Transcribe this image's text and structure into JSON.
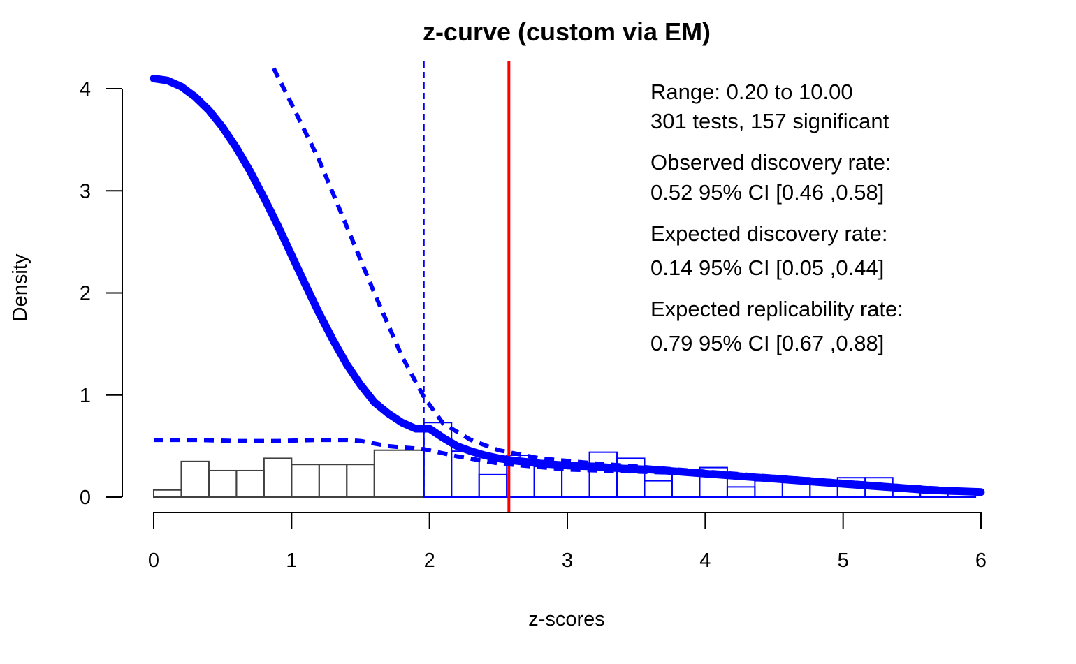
{
  "chart_data": {
    "type": "histogram",
    "title": "z-curve (custom via EM)",
    "xlabel": "z-scores",
    "ylabel": "Density",
    "xlim": [
      0,
      6
    ],
    "ylim": [
      0,
      4
    ],
    "x_ticks": [
      0,
      1,
      2,
      3,
      4,
      5,
      6
    ],
    "y_ticks": [
      0,
      1,
      2,
      3,
      4
    ],
    "colors": {
      "nonsignificant_bars": "#404040",
      "significant_bars": "#0000ff",
      "fitted_curve": "#0000ff",
      "significance_line": "#0000ff",
      "critical_line": "#ff0000"
    },
    "significance_threshold": 1.96,
    "critical_z_line": 2.576,
    "histogram": {
      "bin_width": 0.2,
      "nonsignificant": [
        {
          "x0": 0.0,
          "x1": 0.2,
          "density": 0.07
        },
        {
          "x0": 0.2,
          "x1": 0.4,
          "density": 0.35
        },
        {
          "x0": 0.4,
          "x1": 0.6,
          "density": 0.26
        },
        {
          "x0": 0.6,
          "x1": 0.8,
          "density": 0.26
        },
        {
          "x0": 0.8,
          "x1": 1.0,
          "density": 0.38
        },
        {
          "x0": 1.0,
          "x1": 1.2,
          "density": 0.32
        },
        {
          "x0": 1.2,
          "x1": 1.4,
          "density": 0.32
        },
        {
          "x0": 1.4,
          "x1": 1.6,
          "density": 0.32
        },
        {
          "x0": 1.6,
          "x1": 1.96,
          "density": 0.46
        }
      ],
      "significant": [
        {
          "x0": 1.96,
          "x1": 2.16,
          "density": 0.73
        },
        {
          "x0": 2.16,
          "x1": 2.36,
          "density": 0.45
        },
        {
          "x0": 2.36,
          "x1": 2.56,
          "density": 0.22
        },
        {
          "x0": 2.56,
          "x1": 2.76,
          "density": 0.41
        },
        {
          "x0": 2.76,
          "x1": 2.96,
          "density": 0.3
        },
        {
          "x0": 2.96,
          "x1": 3.16,
          "density": 0.32
        },
        {
          "x0": 3.16,
          "x1": 3.36,
          "density": 0.44
        },
        {
          "x0": 3.36,
          "x1": 3.56,
          "density": 0.38
        },
        {
          "x0": 3.56,
          "x1": 3.76,
          "density": 0.16
        },
        {
          "x0": 3.76,
          "x1": 3.96,
          "density": 0.26
        },
        {
          "x0": 3.96,
          "x1": 4.16,
          "density": 0.29
        },
        {
          "x0": 4.16,
          "x1": 4.36,
          "density": 0.1
        },
        {
          "x0": 4.36,
          "x1": 4.56,
          "density": 0.16
        },
        {
          "x0": 4.56,
          "x1": 4.76,
          "density": 0.19
        },
        {
          "x0": 4.76,
          "x1": 4.96,
          "density": 0.13
        },
        {
          "x0": 4.96,
          "x1": 5.16,
          "density": 0.19
        },
        {
          "x0": 5.16,
          "x1": 5.36,
          "density": 0.19
        },
        {
          "x0": 5.36,
          "x1": 5.56,
          "density": 0.06
        },
        {
          "x0": 5.56,
          "x1": 5.76,
          "density": 0.06
        },
        {
          "x0": 5.76,
          "x1": 5.96,
          "density": 0.03
        }
      ]
    },
    "fitted_curve": {
      "x": [
        0.0,
        0.1,
        0.2,
        0.3,
        0.4,
        0.5,
        0.6,
        0.7,
        0.8,
        0.9,
        1.0,
        1.1,
        1.2,
        1.3,
        1.4,
        1.5,
        1.6,
        1.7,
        1.8,
        1.9,
        2.0,
        2.1,
        2.2,
        2.3,
        2.4,
        2.5,
        2.6,
        2.8,
        3.0,
        3.2,
        3.4,
        3.6,
        3.8,
        4.0,
        4.2,
        4.4,
        4.6,
        4.8,
        5.0,
        5.2,
        5.4,
        5.6,
        5.8,
        6.0
      ],
      "y": [
        4.1,
        4.08,
        4.02,
        3.92,
        3.79,
        3.62,
        3.42,
        3.19,
        2.93,
        2.66,
        2.37,
        2.08,
        1.8,
        1.54,
        1.3,
        1.1,
        0.93,
        0.82,
        0.73,
        0.67,
        0.67,
        0.58,
        0.5,
        0.45,
        0.41,
        0.38,
        0.36,
        0.33,
        0.31,
        0.3,
        0.28,
        0.27,
        0.25,
        0.23,
        0.21,
        0.19,
        0.17,
        0.15,
        0.13,
        0.11,
        0.09,
        0.07,
        0.06,
        0.05
      ]
    },
    "ci_upper": {
      "x": [
        0.87,
        1.0,
        1.2,
        1.4,
        1.6,
        1.8,
        1.96,
        2.1,
        2.3,
        2.5,
        2.8,
        3.2,
        3.6,
        4.0,
        4.5,
        5.0,
        5.5,
        6.0
      ],
      "y": [
        4.2,
        3.85,
        3.3,
        2.65,
        2.0,
        1.38,
        0.98,
        0.72,
        0.56,
        0.46,
        0.38,
        0.33,
        0.29,
        0.25,
        0.2,
        0.15,
        0.1,
        0.06
      ]
    },
    "ci_lower": {
      "x": [
        0.0,
        0.3,
        0.6,
        0.9,
        1.2,
        1.4,
        1.5,
        1.7,
        1.96,
        2.2,
        2.5,
        3.0,
        3.5,
        4.0,
        4.5,
        5.0,
        5.5,
        6.0
      ],
      "y": [
        0.56,
        0.56,
        0.55,
        0.55,
        0.56,
        0.56,
        0.55,
        0.5,
        0.47,
        0.4,
        0.33,
        0.27,
        0.25,
        0.23,
        0.2,
        0.15,
        0.1,
        0.05
      ]
    },
    "info": [
      "Range: 0.20 to 10.00",
      "301 tests, 157 significant",
      "Observed discovery rate:",
      "0.52  95% CI [0.46 ,0.58]",
      "Expected discovery rate:",
      "0.14  95% CI [0.05 ,0.44]",
      "Expected replicability rate:",
      "0.79  95% CI [0.67 ,0.88]"
    ]
  }
}
